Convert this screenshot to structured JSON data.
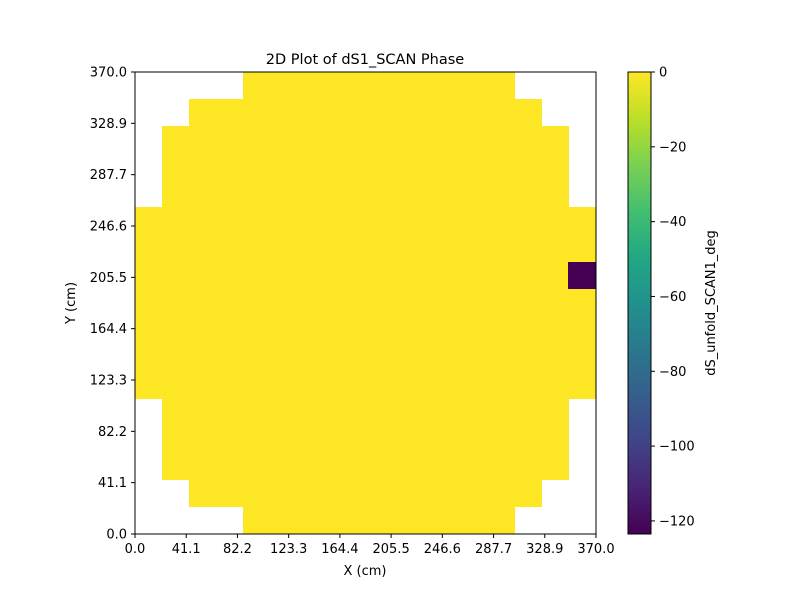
{
  "chart_data": {
    "type": "heatmap",
    "title": "2D Plot of dS1_SCAN Phase",
    "xlabel": "X (cm)",
    "ylabel": "Y (cm)",
    "xlim": [
      0.0,
      370.0
    ],
    "ylim": [
      0.0,
      370.0
    ],
    "x_ticks": [
      "0.0",
      "41.1",
      "82.2",
      "123.3",
      "164.4",
      "205.5",
      "246.6",
      "287.7",
      "328.9",
      "370.0"
    ],
    "y_ticks": [
      "0.0",
      "41.1",
      "82.2",
      "123.3",
      "164.4",
      "205.5",
      "246.6",
      "287.7",
      "328.9",
      "370.0"
    ],
    "grid": false,
    "colormap": "viridis",
    "colorbar": {
      "label": "dS_unfold_SCAN1_deg",
      "range": [
        -123.5,
        0
      ],
      "ticks": [
        0,
        -20,
        -40,
        -60,
        -80,
        -100,
        -120
      ],
      "tick_labels": [
        "0",
        "−20",
        "−40",
        "−60",
        "−80",
        "−100",
        "−120"
      ]
    },
    "grid_size": [
      17,
      17
    ],
    "nan_marker": null,
    "values": [
      [
        null,
        null,
        null,
        null,
        0,
        0,
        0,
        0,
        0,
        0,
        0,
        0,
        0,
        0,
        null,
        null,
        null
      ],
      [
        null,
        null,
        0,
        0,
        0,
        0,
        0,
        0,
        0,
        0,
        0,
        0,
        0,
        0,
        0,
        null,
        null
      ],
      [
        null,
        0,
        0,
        0,
        0,
        0,
        0,
        0,
        0,
        0,
        0,
        0,
        0,
        0,
        0,
        0,
        null
      ],
      [
        null,
        0,
        0,
        0,
        0,
        0,
        0,
        0,
        0,
        0,
        0,
        0,
        0,
        0,
        0,
        0,
        null
      ],
      [
        null,
        0,
        0,
        0,
        0,
        0,
        0,
        0,
        0,
        0,
        0,
        0,
        0,
        0,
        0,
        0,
        null
      ],
      [
        0,
        0,
        0,
        0,
        0,
        0,
        0,
        0,
        0,
        0,
        0,
        0,
        0,
        0,
        0,
        0,
        0
      ],
      [
        0,
        0,
        0,
        0,
        0,
        0,
        0,
        0,
        0,
        0,
        0,
        0,
        0,
        0,
        0,
        0,
        0
      ],
      [
        0,
        0,
        0,
        0,
        0,
        0,
        0,
        0,
        0,
        0,
        0,
        0,
        0,
        0,
        0,
        0,
        -123.5
      ],
      [
        0,
        0,
        0,
        0,
        0,
        0,
        0,
        0,
        0,
        0,
        0,
        0,
        0,
        0,
        0,
        0,
        0
      ],
      [
        0,
        0,
        0,
        0,
        0,
        0,
        0,
        0,
        0,
        0,
        0,
        0,
        0,
        0,
        0,
        0,
        0
      ],
      [
        0,
        0,
        0,
        0,
        0,
        0,
        0,
        0,
        0,
        0,
        0,
        0,
        0,
        0,
        0,
        0,
        0
      ],
      [
        0,
        0,
        0,
        0,
        0,
        0,
        0,
        0,
        0,
        0,
        0,
        0,
        0,
        0,
        0,
        0,
        0
      ],
      [
        null,
        0,
        0,
        0,
        0,
        0,
        0,
        0,
        0,
        0,
        0,
        0,
        0,
        0,
        0,
        0,
        null
      ],
      [
        null,
        0,
        0,
        0,
        0,
        0,
        0,
        0,
        0,
        0,
        0,
        0,
        0,
        0,
        0,
        0,
        null
      ],
      [
        null,
        0,
        0,
        0,
        0,
        0,
        0,
        0,
        0,
        0,
        0,
        0,
        0,
        0,
        0,
        0,
        null
      ],
      [
        null,
        null,
        0,
        0,
        0,
        0,
        0,
        0,
        0,
        0,
        0,
        0,
        0,
        0,
        0,
        null,
        null
      ],
      [
        null,
        null,
        null,
        null,
        0,
        0,
        0,
        0,
        0,
        0,
        0,
        0,
        0,
        0,
        null,
        null,
        null
      ]
    ]
  }
}
